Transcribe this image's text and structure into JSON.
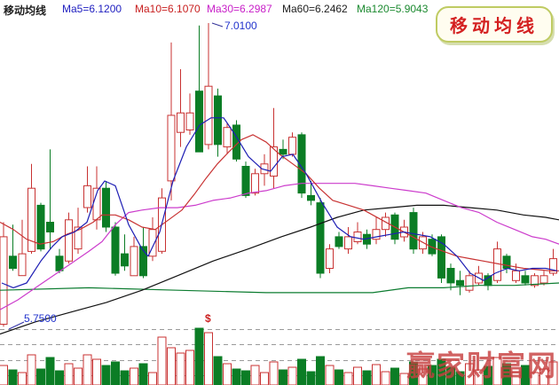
{
  "header": {
    "title": "移动均线",
    "title_color": "#202020",
    "ma_labels": [
      {
        "text": "Ma5=6.1200",
        "color": "#2020c0"
      },
      {
        "text": "Ma10=6.1070",
        "color": "#c82020"
      },
      {
        "text": "Ma30=6.2987",
        "color": "#c820c8"
      },
      {
        "text": "Ma60=6.2462",
        "color": "#202020"
      },
      {
        "text": "Ma120=5.9043",
        "color": "#1c8a30"
      }
    ],
    "badge": "移动均线"
  },
  "annotations": {
    "high_label": "7.0100",
    "low_label": "5.7500",
    "volume_marker": "$"
  },
  "watermark": "赢家财富网",
  "colors": {
    "up": "#c83232",
    "down": "#0b7d25",
    "grid": "#9a9a9a",
    "ma5": "#1e1eb4",
    "ma10": "#c83232",
    "ma30": "#cc3ccc",
    "ma60": "#111111",
    "ma120": "#0c7c30",
    "annotation_blue": "#2233cc",
    "badge_text": "#d42121",
    "watermark_red": "#c74040"
  },
  "chart_data": {
    "type": "candlestick",
    "panes": [
      "price",
      "volume"
    ],
    "bar_count": 60,
    "price_axis": {
      "annotated_high": 7.01,
      "annotated_low": 5.75,
      "grid": "dashed-bottom-pane"
    },
    "legend_position": "top",
    "candles_ohlcv": [
      [
        5.77,
        6.19,
        5.76,
        6.13,
        22
      ],
      [
        6.05,
        6.18,
        5.99,
        6.0,
        17
      ],
      [
        5.97,
        6.2,
        5.97,
        6.06,
        14
      ],
      [
        6.07,
        6.43,
        6.06,
        6.33,
        34
      ],
      [
        6.26,
        6.27,
        6.07,
        6.08,
        18
      ],
      [
        6.19,
        6.49,
        6.08,
        6.15,
        31
      ],
      [
        6.05,
        6.08,
        5.98,
        5.99,
        16
      ],
      [
        6.03,
        6.23,
        6.02,
        6.2,
        24
      ],
      [
        6.08,
        6.25,
        6.06,
        6.17,
        19
      ],
      [
        6.25,
        6.42,
        6.23,
        6.34,
        34
      ],
      [
        6.2,
        6.42,
        6.16,
        6.33,
        29
      ],
      [
        6.33,
        6.36,
        6.15,
        6.17,
        22
      ],
      [
        6.17,
        6.19,
        5.97,
        5.98,
        26
      ],
      [
        6.06,
        6.14,
        5.99,
        6.01,
        16
      ],
      [
        5.97,
        6.13,
        5.97,
        6.09,
        19
      ],
      [
        6.09,
        6.17,
        5.96,
        5.97,
        24
      ],
      [
        6.05,
        6.21,
        6.03,
        6.16,
        14
      ],
      [
        6.07,
        6.33,
        6.06,
        6.29,
        54
      ],
      [
        6.36,
        6.93,
        6.28,
        6.63,
        42
      ],
      [
        6.56,
        6.82,
        6.5,
        6.64,
        36
      ],
      [
        6.57,
        6.72,
        6.55,
        6.64,
        39
      ],
      [
        6.73,
        7.0,
        6.48,
        6.48,
        64
      ],
      [
        6.51,
        7.01,
        6.49,
        6.75,
        59
      ],
      [
        6.71,
        6.74,
        6.46,
        6.51,
        32
      ],
      [
        6.5,
        6.6,
        6.47,
        6.58,
        24
      ],
      [
        6.59,
        6.61,
        6.44,
        6.45,
        18
      ],
      [
        6.42,
        6.44,
        6.29,
        6.3,
        16
      ],
      [
        6.31,
        6.41,
        6.3,
        6.39,
        22
      ],
      [
        6.39,
        6.47,
        6.34,
        6.43,
        14
      ],
      [
        6.38,
        6.66,
        6.33,
        6.5,
        26
      ],
      [
        6.49,
        6.53,
        6.45,
        6.47,
        17
      ],
      [
        6.47,
        6.56,
        6.46,
        6.54,
        20
      ],
      [
        6.55,
        6.56,
        6.29,
        6.31,
        29
      ],
      [
        6.3,
        6.36,
        6.26,
        6.28,
        15
      ],
      [
        6.27,
        6.29,
        5.96,
        5.98,
        32
      ],
      [
        6.0,
        6.1,
        5.98,
        6.08,
        22
      ],
      [
        6.13,
        6.15,
        6.08,
        6.09,
        17
      ],
      [
        6.08,
        6.17,
        6.06,
        6.13,
        14
      ],
      [
        6.11,
        6.19,
        6.1,
        6.15,
        20
      ],
      [
        6.14,
        6.16,
        6.08,
        6.1,
        16
      ],
      [
        6.12,
        6.21,
        6.1,
        6.16,
        23
      ],
      [
        6.16,
        6.23,
        6.13,
        6.21,
        15
      ],
      [
        6.22,
        6.23,
        6.1,
        6.12,
        19
      ],
      [
        6.13,
        6.2,
        6.11,
        6.17,
        13
      ],
      [
        6.23,
        6.25,
        6.06,
        6.08,
        26
      ],
      [
        6.08,
        6.15,
        6.06,
        6.13,
        18
      ],
      [
        6.12,
        6.14,
        6.05,
        6.06,
        22
      ],
      [
        6.13,
        6.14,
        5.94,
        5.96,
        29
      ],
      [
        6.0,
        6.02,
        5.91,
        5.94,
        20
      ],
      [
        5.95,
        5.99,
        5.89,
        5.93,
        15
      ],
      [
        5.91,
        5.99,
        5.9,
        5.97,
        24
      ],
      [
        5.94,
        6.01,
        5.93,
        5.98,
        17
      ],
      [
        5.97,
        5.98,
        5.91,
        5.93,
        21
      ],
      [
        5.95,
        6.11,
        5.94,
        6.08,
        31
      ],
      [
        6.05,
        6.06,
        5.98,
        6.0,
        24
      ],
      [
        5.95,
        6.02,
        5.94,
        5.99,
        15
      ],
      [
        5.97,
        5.99,
        5.93,
        5.94,
        22
      ],
      [
        5.93,
        5.98,
        5.92,
        5.97,
        14
      ],
      [
        5.94,
        5.99,
        5.93,
        5.97,
        18
      ],
      [
        5.98,
        6.08,
        5.97,
        6.04,
        26
      ]
    ],
    "volume_units": "relative",
    "ma_lines": [
      {
        "name": "MA5",
        "color": "#1e1eb4",
        "points": [
          [
            2,
            5.94
          ],
          [
            15,
            5.92
          ],
          [
            30,
            5.94
          ],
          [
            46,
            6.03
          ],
          [
            59,
            6.09
          ],
          [
            70,
            6.13
          ],
          [
            84,
            6.15
          ],
          [
            98,
            6.19
          ],
          [
            110,
            6.32
          ],
          [
            118,
            6.36
          ],
          [
            130,
            6.34
          ],
          [
            145,
            6.18
          ],
          [
            160,
            6.08
          ],
          [
            167,
            6.05
          ],
          [
            180,
            6.15
          ],
          [
            195,
            6.36
          ],
          [
            210,
            6.5
          ],
          [
            225,
            6.59
          ],
          [
            238,
            6.62
          ],
          [
            252,
            6.62
          ],
          [
            265,
            6.55
          ],
          [
            280,
            6.46
          ],
          [
            295,
            6.41
          ],
          [
            305,
            6.4
          ],
          [
            318,
            6.46
          ],
          [
            330,
            6.47
          ],
          [
            345,
            6.39
          ],
          [
            363,
            6.27
          ],
          [
            380,
            6.17
          ],
          [
            395,
            6.13
          ],
          [
            410,
            6.12
          ],
          [
            425,
            6.13
          ],
          [
            440,
            6.14
          ],
          [
            455,
            6.15
          ],
          [
            470,
            6.14
          ],
          [
            485,
            6.13
          ],
          [
            500,
            6.1
          ],
          [
            515,
            6.05
          ],
          [
            530,
            5.98
          ],
          [
            545,
            5.95
          ],
          [
            558,
            5.98
          ],
          [
            572,
            6.0
          ],
          [
            585,
            5.99
          ],
          [
            600,
            6.0
          ],
          [
            615,
            6.0
          ],
          [
            628,
            5.99
          ]
        ]
      },
      {
        "name": "MA10",
        "color": "#c83232",
        "points": [
          [
            0,
            6.19
          ],
          [
            15,
            6.16
          ],
          [
            30,
            6.12
          ],
          [
            45,
            6.1
          ],
          [
            60,
            6.11
          ],
          [
            75,
            6.14
          ],
          [
            90,
            6.16
          ],
          [
            105,
            6.19
          ],
          [
            115,
            6.22
          ],
          [
            130,
            6.22
          ],
          [
            145,
            6.2
          ],
          [
            160,
            6.17
          ],
          [
            175,
            6.16
          ],
          [
            190,
            6.2
          ],
          [
            205,
            6.24
          ],
          [
            220,
            6.31
          ],
          [
            232,
            6.37
          ],
          [
            245,
            6.43
          ],
          [
            258,
            6.48
          ],
          [
            272,
            6.53
          ],
          [
            285,
            6.55
          ],
          [
            300,
            6.52
          ],
          [
            315,
            6.47
          ],
          [
            330,
            6.43
          ],
          [
            345,
            6.39
          ],
          [
            360,
            6.33
          ],
          [
            375,
            6.28
          ],
          [
            393,
            6.26
          ],
          [
            410,
            6.24
          ],
          [
            430,
            6.2
          ],
          [
            450,
            6.16
          ],
          [
            470,
            6.12
          ],
          [
            485,
            6.09
          ],
          [
            500,
            6.07
          ],
          [
            515,
            6.05
          ],
          [
            530,
            6.04
          ],
          [
            545,
            6.03
          ],
          [
            560,
            6.02
          ],
          [
            575,
            6.01
          ],
          [
            590,
            6.0
          ],
          [
            605,
            5.995
          ],
          [
            620,
            5.99
          ],
          [
            630,
            5.99
          ]
        ]
      },
      {
        "name": "MA30",
        "color": "#cc3ccc",
        "points": [
          [
            0,
            5.83
          ],
          [
            20,
            5.87
          ],
          [
            40,
            5.92
          ],
          [
            60,
            5.97
          ],
          [
            80,
            6.02
          ],
          [
            100,
            6.07
          ],
          [
            115,
            6.11
          ],
          [
            130,
            6.18
          ],
          [
            145,
            6.23
          ],
          [
            160,
            6.24
          ],
          [
            180,
            6.25
          ],
          [
            200,
            6.25
          ],
          [
            220,
            6.26
          ],
          [
            240,
            6.28
          ],
          [
            260,
            6.29
          ],
          [
            280,
            6.31
          ],
          [
            300,
            6.32
          ],
          [
            320,
            6.34
          ],
          [
            340,
            6.35
          ],
          [
            360,
            6.35
          ],
          [
            380,
            6.35
          ],
          [
            400,
            6.35
          ],
          [
            420,
            6.34
          ],
          [
            440,
            6.33
          ],
          [
            460,
            6.32
          ],
          [
            480,
            6.31
          ],
          [
            500,
            6.28
          ],
          [
            520,
            6.25
          ],
          [
            540,
            6.23
          ],
          [
            560,
            6.19
          ],
          [
            580,
            6.16
          ],
          [
            600,
            6.13
          ],
          [
            615,
            6.12
          ],
          [
            630,
            6.1
          ]
        ]
      },
      {
        "name": "MA60",
        "color": "#111111",
        "points": [
          [
            0,
            5.73
          ],
          [
            40,
            5.78
          ],
          [
            80,
            5.82
          ],
          [
            120,
            5.86
          ],
          [
            160,
            5.91
          ],
          [
            200,
            5.97
          ],
          [
            240,
            6.03
          ],
          [
            280,
            6.08
          ],
          [
            317,
            6.13
          ],
          [
            350,
            6.17
          ],
          [
            380,
            6.21
          ],
          [
            410,
            6.24
          ],
          [
            440,
            6.25
          ],
          [
            470,
            6.26
          ],
          [
            500,
            6.26
          ],
          [
            530,
            6.25
          ],
          [
            560,
            6.24
          ],
          [
            590,
            6.22
          ],
          [
            615,
            6.21
          ],
          [
            630,
            6.2
          ]
        ]
      },
      {
        "name": "MA120",
        "color": "#0c7c30",
        "points": [
          [
            0,
            5.91
          ],
          [
            100,
            5.92
          ],
          [
            200,
            5.91
          ],
          [
            300,
            5.9
          ],
          [
            340,
            5.9
          ],
          [
            420,
            5.9
          ],
          [
            460,
            5.92
          ],
          [
            500,
            5.92
          ],
          [
            540,
            5.93
          ],
          [
            580,
            5.93
          ],
          [
            630,
            5.94
          ]
        ]
      }
    ]
  }
}
